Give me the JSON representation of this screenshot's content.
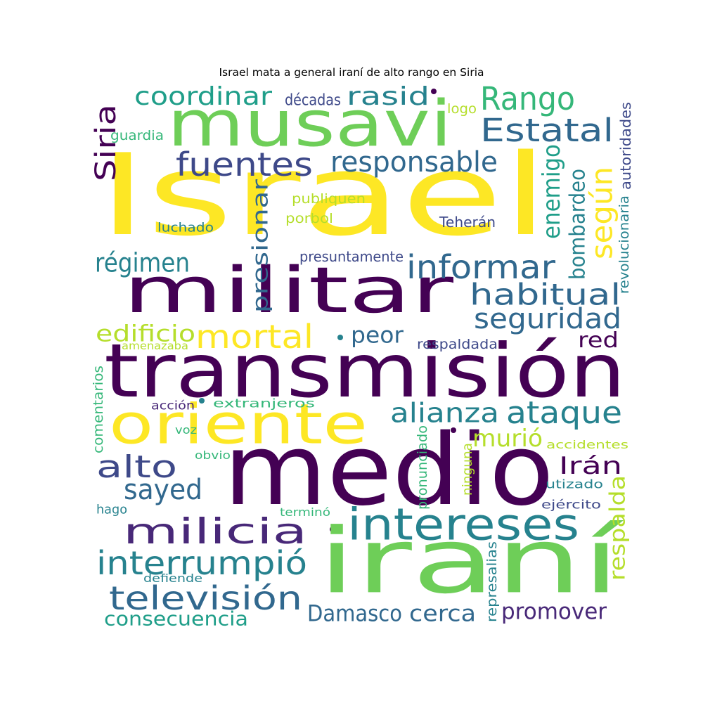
{
  "title": "Israel mata a general iraní de alto rango en Siria",
  "colors": {
    "p_dark": "#440154",
    "p_indigo": "#482878",
    "p_slate": "#3e4989",
    "p_blue": "#31688e",
    "p_teal": "#26828e",
    "p_teal2": "#1f9e89",
    "p_green": "#35b779",
    "p_lime": "#6ece58",
    "p_yellowgreen": "#b5de2b",
    "p_yellow": "#fde725"
  },
  "words": [
    {
      "text": "Israel",
      "color": "#fde725"
    },
    {
      "text": "musavi",
      "color": "#6ece58"
    },
    {
      "text": "militar",
      "color": "#440154"
    },
    {
      "text": "transmisión",
      "color": "#440154"
    },
    {
      "text": "oriente",
      "color": "#fde725"
    },
    {
      "text": "medio",
      "color": "#440154"
    },
    {
      "text": "iraní",
      "color": "#6ece58"
    },
    {
      "text": "intereses",
      "color": "#26828e"
    },
    {
      "text": "milicia",
      "color": "#482878"
    },
    {
      "text": "informar",
      "color": "#31688e"
    },
    {
      "text": "habitual",
      "color": "#31688e"
    },
    {
      "text": "seguridad",
      "color": "#31688e"
    },
    {
      "text": "Rango",
      "color": "#35b779"
    },
    {
      "text": "Estatal",
      "color": "#31688e"
    },
    {
      "text": "fuentes",
      "color": "#3e4989"
    },
    {
      "text": "responsable",
      "color": "#31688e"
    },
    {
      "text": "coordinar",
      "color": "#1f9e89"
    },
    {
      "text": "rasid",
      "color": "#26828e"
    },
    {
      "text": "Siria",
      "color": "#440154"
    },
    {
      "text": "según",
      "color": "#fde725"
    },
    {
      "text": "enemigo",
      "color": "#1f9e89"
    },
    {
      "text": "bombardeo",
      "color": "#26828e"
    },
    {
      "text": "presionar",
      "color": "#31688e"
    },
    {
      "text": "régimen",
      "color": "#26828e"
    },
    {
      "text": "mortal",
      "color": "#fde725"
    },
    {
      "text": "edificio",
      "color": "#b5de2b"
    },
    {
      "text": "peor",
      "color": "#31688e"
    },
    {
      "text": "red",
      "color": "#440154"
    },
    {
      "text": "alianza",
      "color": "#26828e"
    },
    {
      "text": "ataque",
      "color": "#26828e"
    },
    {
      "text": "murió",
      "color": "#b5de2b"
    },
    {
      "text": "alto",
      "color": "#3e4989"
    },
    {
      "text": "Irán",
      "color": "#440154"
    },
    {
      "text": "sayed",
      "color": "#31688e"
    },
    {
      "text": "interrumpió",
      "color": "#26828e"
    },
    {
      "text": "televisión",
      "color": "#31688e"
    },
    {
      "text": "consecuencia",
      "color": "#1f9e89"
    },
    {
      "text": "Damasco",
      "color": "#31688e"
    },
    {
      "text": "cerca",
      "color": "#31688e"
    },
    {
      "text": "promover",
      "color": "#482878"
    },
    {
      "text": "respalda",
      "color": "#b5de2b"
    },
    {
      "text": "décadas",
      "color": "#3e4989"
    },
    {
      "text": "logo",
      "color": "#b5de2b"
    },
    {
      "text": "guardia",
      "color": "#35b779"
    },
    {
      "text": "autoridades",
      "color": "#3e4989"
    },
    {
      "text": "revolucionaria",
      "color": "#26828e"
    },
    {
      "text": "publiquen",
      "color": "#b5de2b"
    },
    {
      "text": "porbol",
      "color": "#b5de2b"
    },
    {
      "text": "luchado",
      "color": "#26828e"
    },
    {
      "text": "Teherán",
      "color": "#3e4989"
    },
    {
      "text": "presuntamente",
      "color": "#3e4989"
    },
    {
      "text": "amenazaba",
      "color": "#b5de2b"
    },
    {
      "text": "respaldada",
      "color": "#3e4989"
    },
    {
      "text": "comentarios",
      "color": "#35b779"
    },
    {
      "text": "acción",
      "color": "#482878"
    },
    {
      "text": "extranjeros",
      "color": "#35b779"
    },
    {
      "text": "voz",
      "color": "#35b779"
    },
    {
      "text": "obvio",
      "color": "#35b779"
    },
    {
      "text": "pronunciado",
      "color": "#35b779"
    },
    {
      "text": "ninguna",
      "color": "#b5de2b"
    },
    {
      "text": "accidentes",
      "color": "#b5de2b"
    },
    {
      "text": "utizado",
      "color": "#26828e"
    },
    {
      "text": "hago",
      "color": "#26828e"
    },
    {
      "text": "terminó",
      "color": "#35b779"
    },
    {
      "text": "ejército",
      "color": "#3e4989"
    },
    {
      "text": "defiende",
      "color": "#26828e"
    },
    {
      "text": "represalias",
      "color": "#26828e"
    }
  ]
}
